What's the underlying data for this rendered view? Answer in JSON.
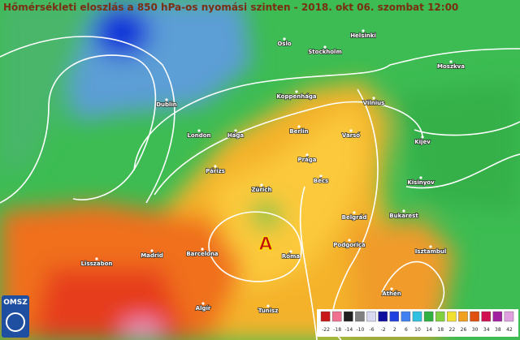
{
  "header": {
    "title": "Hőmérsékleti eloszlás a 850 hPa-os nyomási szinten - 2018. okt 06. szombat 12:00"
  },
  "cities": [
    "Oslo",
    "Helsinki",
    "Stockholm",
    "Moszkva",
    "Dublin",
    "Koppenhága",
    "Vilnius",
    "London",
    "Hága",
    "Berlin",
    "Varsó",
    "Kijev",
    "Párizs",
    "Prága",
    "Zürich",
    "Bécs",
    "Kisinyov",
    "Belgrád",
    "Bukarest",
    "Podgorica",
    "Madrid",
    "Barcelona",
    "Róma",
    "Isztambul",
    "Lisszabon",
    "Athén",
    "Algír",
    "Tunisz"
  ],
  "pressure_center": "A",
  "logo": "OMSZ",
  "legend": {
    "ticks": [
      "-22",
      "-18",
      "-14",
      "-10",
      "-6",
      "-2",
      "2",
      "6",
      "10",
      "14",
      "18",
      "22",
      "26",
      "30",
      "34",
      "38",
      "42"
    ]
  }
}
